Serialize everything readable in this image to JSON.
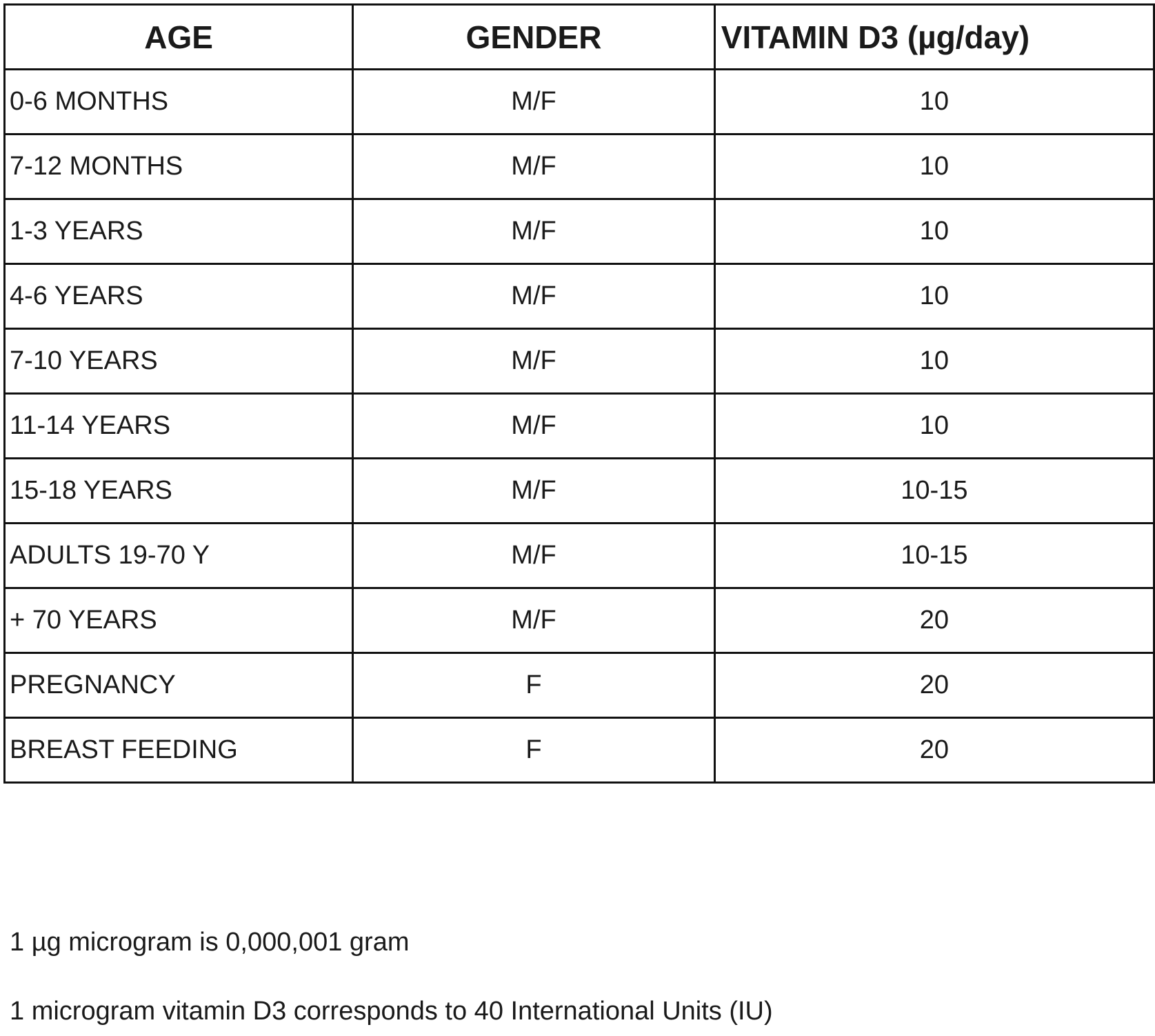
{
  "table": {
    "headers": {
      "age": "AGE",
      "gender": "GENDER",
      "vitamin": "VITAMIN D3 (µg/day)"
    },
    "rows": [
      {
        "age": "0-6 MONTHS",
        "gender": "M/F",
        "vitamin": "10"
      },
      {
        "age": "7-12 MONTHS",
        "gender": "M/F",
        "vitamin": "10"
      },
      {
        "age": "1-3 YEARS",
        "gender": "M/F",
        "vitamin": "10"
      },
      {
        "age": "4-6 YEARS",
        "gender": "M/F",
        "vitamin": "10"
      },
      {
        "age": "7-10 YEARS",
        "gender": "M/F",
        "vitamin": "10"
      },
      {
        "age": "11-14 YEARS",
        "gender": "M/F",
        "vitamin": "10"
      },
      {
        "age": "15-18 YEARS",
        "gender": "M/F",
        "vitamin": "10-15"
      },
      {
        "age": "ADULTS 19-70 Y",
        "gender": "M/F",
        "vitamin": "10-15"
      },
      {
        "age": "+ 70 YEARS",
        "gender": "M/F",
        "vitamin": "20"
      },
      {
        "age": "PREGNANCY",
        "gender": "F",
        "vitamin": "20"
      },
      {
        "age": "BREAST FEEDING",
        "gender": "F",
        "vitamin": "20"
      }
    ]
  },
  "notes": {
    "microgram": "1 µg microgram is 0,000,001 gram",
    "iu": "1 microgram vitamin D3 corresponds to 40 International Units (IU)"
  }
}
